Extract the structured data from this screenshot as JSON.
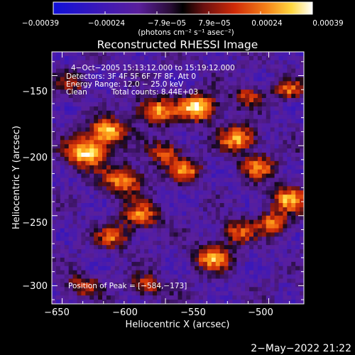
{
  "chart_data": {
    "type": "heatmap",
    "title": "Reconstructed RHESSI Image",
    "xlabel": "Heliocentric X (arcsec)",
    "ylabel": "Heliocentric Y (arcsec)",
    "xlim": [
      -655,
      -533
    ],
    "ylim": [
      -313,
      -133
    ],
    "x_ticks": [
      -650,
      -600,
      -550,
      -500
    ],
    "y_ticks": [
      -150,
      -200,
      -250,
      -300
    ],
    "x_tick_labels": [
      "−650",
      "−600",
      "−550",
      "−500"
    ],
    "y_tick_labels": [
      "−150",
      "−200",
      "−250",
      "−300"
    ],
    "colorbar": {
      "range": [
        -0.00039,
        0.00039
      ],
      "tick_labels": [
        "−0.00039",
        "−0.00024",
        "−7.9e−05",
        "7.9e−05",
        "0.00024",
        "0.00039"
      ],
      "units_label": "(photons cm⁻² s⁻¹ asec⁻²)",
      "colormap": "blue-purple-red-yellow-white"
    },
    "annotations": {
      "time_range": "4−Oct−2005 15:13:12.000 to 15:19:12.000",
      "detectors": "Detectors: 3F 4F 5F 6F 7F 8F, Att 0",
      "energy_range": "Energy Range: 12.0 − 25.0 keV",
      "clean": "Clean",
      "total_counts": "Total counts: 8.44E+03",
      "peak_position": "Position of Peak = [−584,−173]"
    },
    "grid": false
  },
  "footer": {
    "date": "2−May−2022 21:22"
  },
  "colors": {
    "background": "#000000",
    "text": "#ffffff",
    "colormap_stops": [
      "#1010d8",
      "#3c18b8",
      "#5a1f9c",
      "#4a1a7a",
      "#2a0d38",
      "#6a1818",
      "#c02a08",
      "#f06010",
      "#ffb020",
      "#ffec60",
      "#ffffff"
    ]
  }
}
